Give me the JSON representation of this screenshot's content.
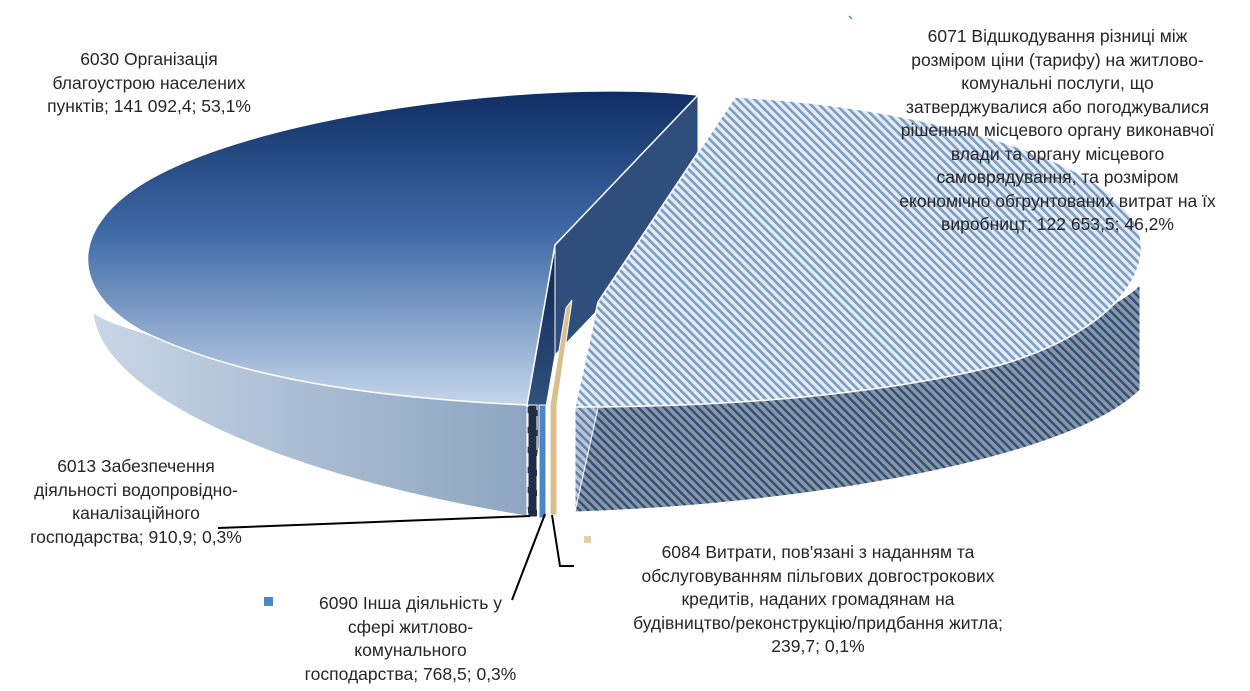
{
  "chart_data": {
    "type": "pie",
    "style": "3d-exploded",
    "slices": [
      {
        "code": "6030",
        "value": 141092.4,
        "percent": 53.1,
        "color": "#1d3f78",
        "label_lines": [
          "6030 Організація",
          "благоустрою населених",
          "пунктів; 141 092,4; 53,1%"
        ]
      },
      {
        "code": "6071",
        "value": 122653.5,
        "percent": 46.2,
        "color": "#7e9ec0",
        "label_lines": [
          "6071 Відшкодування різниці між",
          "розміром ціни (тарифу) на житлово-",
          "комунальні послуги, що",
          "затверджувалися або погоджувалися",
          "рішенням місцевого органу виконавчої",
          "влади та органу місцевого",
          "самоврядування, та розміром",
          "економічно обгрунтованих витрат на їх",
          "виробницт; 122 653,5; 46,2%"
        ]
      },
      {
        "code": "6084",
        "value": 239.7,
        "percent": 0.1,
        "color": "#d9bf8c",
        "label_lines": [
          "6084 Витрати, пов'язані з наданням та",
          "обслуговуванням пільгових довгострокових",
          "кредитів, наданих громадянам на",
          "будівництво/реконструкцію/придбання житла;",
          "239,7; 0,1%"
        ]
      },
      {
        "code": "6090",
        "value": 768.5,
        "percent": 0.3,
        "color": "#4a86c8",
        "label_lines": [
          "6090 Інша діяльність у",
          "сфері житлово-",
          "комунального",
          "господарства;  768,5; 0,3%"
        ]
      },
      {
        "code": "6013",
        "value": 910.9,
        "percent": 0.3,
        "color": "#1f2d45",
        "label_lines": [
          "6013 Забезпечення",
          "діяльності  водопровідно-",
          "каналізаційного",
          "господарства; 910,9; 0,3%"
        ]
      }
    ]
  }
}
